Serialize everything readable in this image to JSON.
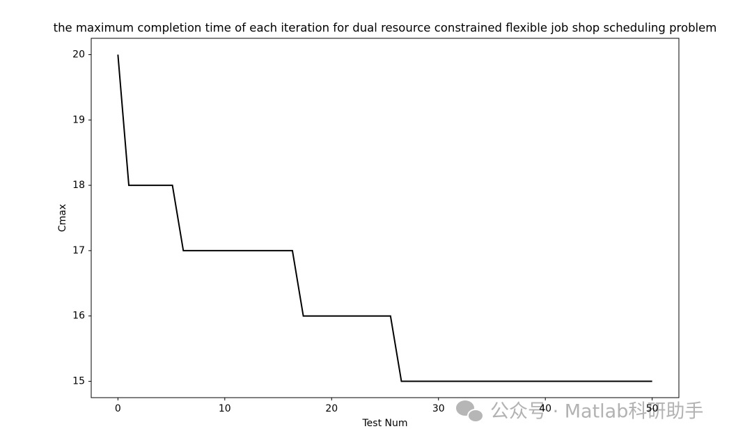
{
  "chart_data": {
    "type": "line",
    "title": "the maximum completion time of each iteration for dual resource constrained flexible job shop scheduling problem",
    "x_label": "Test Num",
    "y_label": "Cmax",
    "x": [
      0,
      1.02,
      2.04,
      3.06,
      4.08,
      5.1,
      6.12,
      7.14,
      8.16,
      9.18,
      10.2,
      11.22,
      12.24,
      13.27,
      14.29,
      15.31,
      16.33,
      17.35,
      18.37,
      19.39,
      20.41,
      21.43,
      22.45,
      23.47,
      24.49,
      25.51,
      26.53,
      27.55,
      28.57,
      29.59,
      30.61,
      31.63,
      32.65,
      33.67,
      34.69,
      35.71,
      36.73,
      37.76,
      38.78,
      39.8,
      40.82,
      41.84,
      42.86,
      43.88,
      44.9,
      45.92,
      46.94,
      47.96,
      48.98,
      50
    ],
    "series": [
      {
        "color": "#000000",
        "values": [
          20,
          18,
          18,
          18,
          18,
          18,
          17,
          17,
          17,
          17,
          17,
          17,
          17,
          17,
          17,
          17,
          17,
          16,
          16,
          16,
          16,
          16,
          16,
          16,
          16,
          16,
          15,
          15,
          15,
          15,
          15,
          15,
          15,
          15,
          15,
          15,
          15,
          15,
          15,
          15,
          15,
          15,
          15,
          15,
          15,
          15,
          15,
          15,
          15,
          15
        ]
      }
    ],
    "xlim": [
      -2.5,
      52.5
    ],
    "xticks": [
      0,
      10,
      20,
      30,
      40,
      50
    ],
    "ylim": [
      14.75,
      20.25
    ],
    "yticks": [
      15,
      16,
      17,
      18,
      19,
      20
    ],
    "grid": false
  },
  "watermark": "公众号 · Matlab科研助手"
}
